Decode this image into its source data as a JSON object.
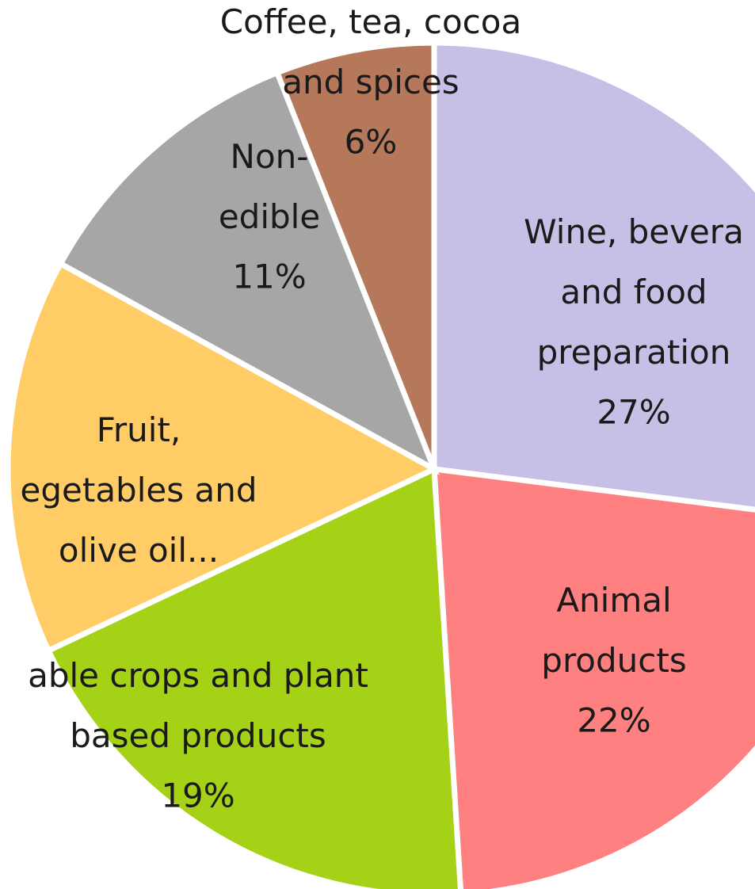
{
  "chart_data": {
    "type": "pie",
    "categories": [
      "Wine, bevera\nand food\npreparation",
      "Animal\nproducts",
      "able crops and plant\nbased products",
      "Fruit,\negetables and\nolive oil...",
      "Non-\nedible",
      "Coffee, tea, cocoa\nand spices"
    ],
    "values": [
      27,
      22,
      19,
      15,
      11,
      6
    ],
    "value_labels": [
      "27%",
      "22%",
      "19%",
      null,
      "11%",
      "6%"
    ],
    "colors": [
      "#c6bfe6",
      "#ff8080",
      "#a5d116",
      "#ffcc66",
      "#a6a6a6",
      "#b5785a"
    ]
  }
}
